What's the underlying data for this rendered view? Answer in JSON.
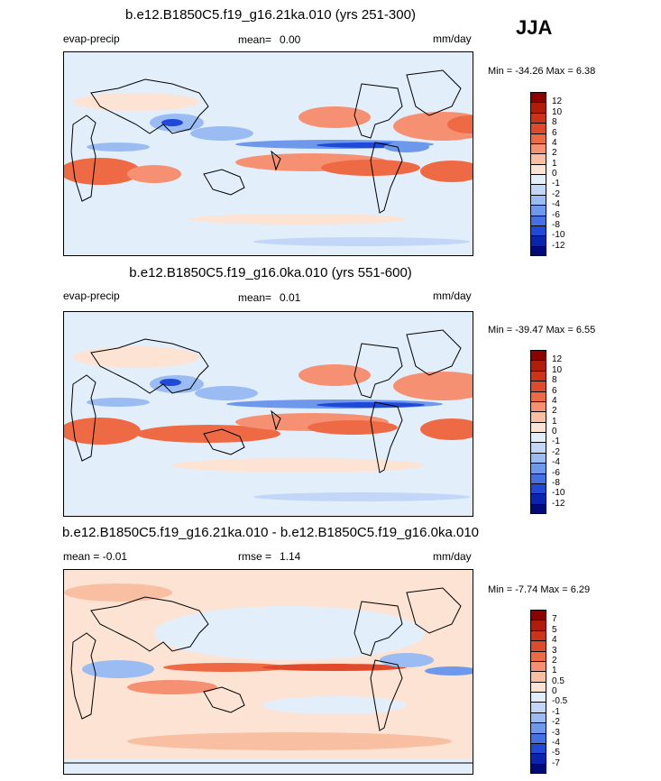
{
  "season": "JJA",
  "panels": [
    {
      "title": "b.e12.B1850C5.f19_g16.21ka.010 (yrs 251-300)",
      "left_label": "evap-precip",
      "mean_label": "mean=",
      "mean_value": "0.00",
      "units": "mm/day",
      "minmax": "Min = -34.26 Max =   6.38",
      "colorbar_levels": [
        "12",
        "10",
        "8",
        "6",
        "4",
        "2",
        "1",
        "0",
        "-1",
        "-2",
        "-4",
        "-6",
        "-8",
        "-10",
        "-12"
      ],
      "colorbar_colors": [
        "#8c0000",
        "#b31c0a",
        "#cc3318",
        "#e04a2a",
        "#ee6a45",
        "#f59172",
        "#f9bfa3",
        "#fde3d4",
        "#e3eefb",
        "#c2d7f7",
        "#9bbcf2",
        "#6e98ec",
        "#4470e4",
        "#1f49d6",
        "#0a24b0",
        "#000a78"
      ]
    },
    {
      "title": "b.e12.B1850C5.f19_g16.0ka.010 (yrs 551-600)",
      "left_label": "evap-precip",
      "mean_label": "mean=",
      "mean_value": "0.01",
      "units": "mm/day",
      "minmax": "Min = -39.47 Max =   6.55",
      "colorbar_levels": [
        "12",
        "10",
        "8",
        "6",
        "4",
        "2",
        "1",
        "0",
        "-1",
        "-2",
        "-4",
        "-6",
        "-8",
        "-10",
        "-12"
      ],
      "colorbar_colors": [
        "#8c0000",
        "#b31c0a",
        "#cc3318",
        "#e04a2a",
        "#ee6a45",
        "#f59172",
        "#f9bfa3",
        "#fde3d4",
        "#e3eefb",
        "#c2d7f7",
        "#9bbcf2",
        "#6e98ec",
        "#4470e4",
        "#1f49d6",
        "#0a24b0",
        "#000a78"
      ]
    },
    {
      "title": "b.e12.B1850C5.f19_g16.21ka.010 - b.e12.B1850C5.f19_g16.0ka.010",
      "left_label": "mean =  -0.01",
      "rmse_label": "rmse =",
      "rmse_value": "1.14",
      "units": "mm/day",
      "minmax": "Min =  -7.74 Max =  6.29",
      "colorbar_levels": [
        "7",
        "5",
        "4",
        "3",
        "2",
        "1",
        "0.5",
        "0",
        "-0.5",
        "-1",
        "-2",
        "-3",
        "-4",
        "-5",
        "-7"
      ],
      "colorbar_colors": [
        "#8c0000",
        "#b31c0a",
        "#cc3318",
        "#e04a2a",
        "#ee6a45",
        "#f59172",
        "#f9bfa3",
        "#fde3d4",
        "#e3eefb",
        "#c2d7f7",
        "#9bbcf2",
        "#6e98ec",
        "#4470e4",
        "#1f49d6",
        "#0a24b0",
        "#000a78"
      ]
    }
  ]
}
